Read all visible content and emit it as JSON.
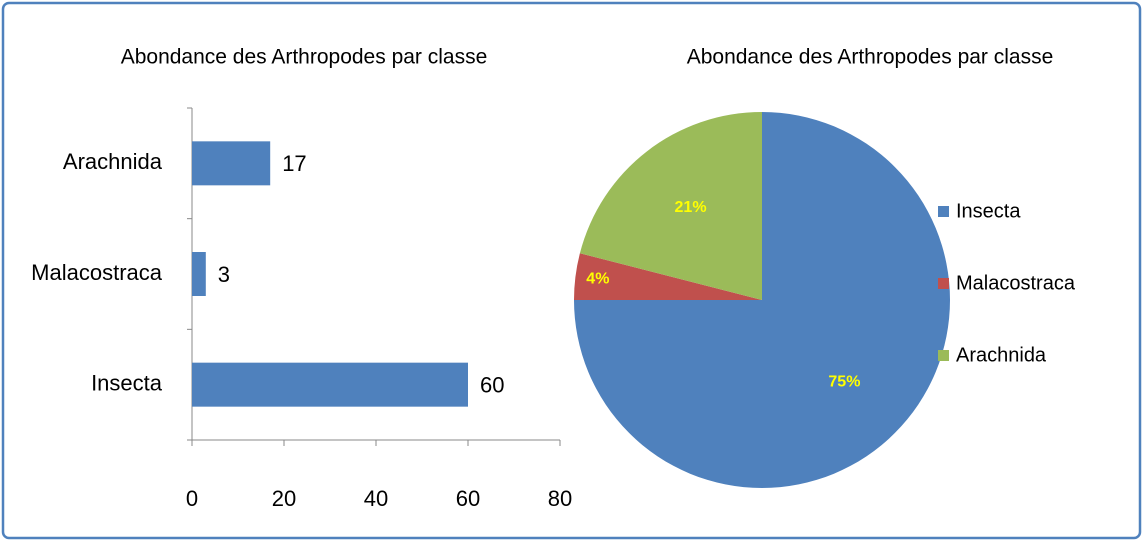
{
  "chart_data": [
    {
      "type": "hbar",
      "title": "Abondance des Arthropodes par classe",
      "categories": [
        "Insecta",
        "Malacostraca",
        "Arachnida"
      ],
      "values": [
        60,
        3,
        17
      ],
      "color": "#4f81bd",
      "xlim": [
        0,
        80
      ],
      "xticks": [
        0,
        20,
        40,
        60,
        80
      ]
    },
    {
      "type": "pie",
      "title": "Abondance des Arthropodes par classe",
      "categories": [
        "Insecta",
        "Malacostraca",
        "Arachnida"
      ],
      "values": [
        75,
        4,
        21
      ],
      "value_labels": [
        "75%",
        "4%",
        "21%"
      ],
      "colors": [
        "#4f81bd",
        "#c0504d",
        "#9bbb59"
      ],
      "legend": "right"
    }
  ]
}
